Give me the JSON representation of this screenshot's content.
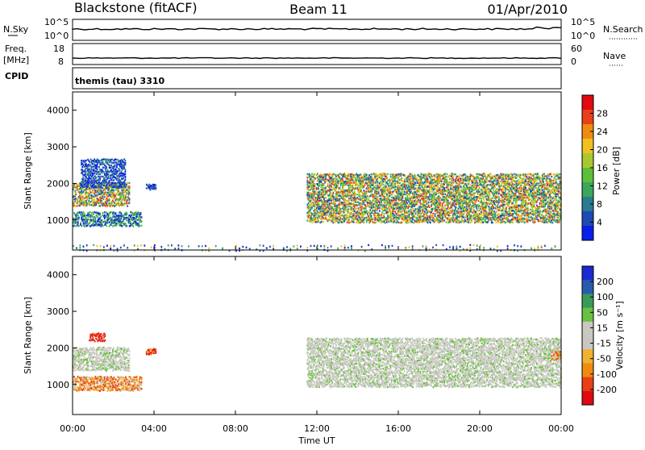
{
  "header": {
    "station": "Blackstone (fitACF)",
    "beam": "Beam 11",
    "date": "01/Apr/2010"
  },
  "strips": {
    "nsky_label": "N.Sky",
    "nsky_top": "10^5",
    "nsky_bot": "10^0",
    "nsearch_label": "N.Search",
    "nsearch_top": "10^5",
    "nsearch_bot": "10^0",
    "freq_label": "Freq.",
    "freq_unit": "[MHz]",
    "freq_top": "18",
    "freq_bot": "8",
    "nave_label": "Nave",
    "nave_top": "60",
    "nave_bot": "0",
    "cpid_label": "CPID",
    "cpid_value": "themis (tau) 3310"
  },
  "chart_data": [
    {
      "type": "heatmap",
      "parameter": "Power",
      "ylabel": "Slant Range [km]",
      "xlabel": "",
      "x_range_hours": [
        0,
        24
      ],
      "ylim": [
        180,
        4500
      ],
      "y_ticks": [
        "4000",
        "3000",
        "2000",
        "1000"
      ],
      "y_tick_values": [
        4000,
        3000,
        2000,
        1000
      ],
      "colorbar": {
        "label": "Power [dB]",
        "ticks": [
          "28",
          "24",
          "20",
          "16",
          "12",
          "8",
          "4"
        ],
        "tick_values": [
          28,
          24,
          20,
          16,
          12,
          8,
          4
        ],
        "range": [
          0,
          32
        ],
        "colors": [
          "#0a1eea",
          "#1e4ab4",
          "#2a7a90",
          "#3aa85a",
          "#5bbf3a",
          "#a8c830",
          "#f0c020",
          "#f08a10",
          "#e84018",
          "#e00a10"
        ]
      },
      "echo_regions": [
        {
          "t_start": 0.0,
          "t_end": 3.4,
          "r_min": 850,
          "r_max": 1250,
          "level": "low-mid"
        },
        {
          "t_start": 0.0,
          "t_end": 2.8,
          "r_min": 1400,
          "r_max": 2050,
          "level": "mid-high"
        },
        {
          "t_start": 0.4,
          "t_end": 2.6,
          "r_min": 1900,
          "r_max": 2700,
          "level": "low"
        },
        {
          "t_start": 3.6,
          "t_end": 4.1,
          "r_min": 1850,
          "r_max": 2000,
          "level": "low"
        },
        {
          "t_start": 11.5,
          "t_end": 24.0,
          "r_min": 950,
          "r_max": 2300,
          "level": "mid-high"
        },
        {
          "t_start": 0.0,
          "t_end": 24.0,
          "r_min": 180,
          "r_max": 350,
          "level": "ground-scatter-sparse"
        }
      ]
    },
    {
      "type": "heatmap",
      "parameter": "Velocity",
      "ylabel": "Slant Range [km]",
      "xlabel": "Time UT",
      "x_range_hours": [
        0,
        24
      ],
      "x_ticks": [
        "00:00",
        "04:00",
        "08:00",
        "12:00",
        "16:00",
        "20:00",
        "00:00"
      ],
      "ylim": [
        180,
        4500
      ],
      "y_ticks": [
        "4000",
        "3000",
        "2000",
        "1000"
      ],
      "y_tick_values": [
        4000,
        3000,
        2000,
        1000
      ],
      "colorbar": {
        "label": "Velocity [m s⁻¹]",
        "ticks": [
          "200",
          "100",
          "50",
          "15",
          "-15",
          "-50",
          "-100",
          "-200"
        ],
        "tick_values": [
          200,
          100,
          50,
          15,
          -15,
          -50,
          -100,
          -200
        ],
        "colors": [
          "#e00a10",
          "#e84018",
          "#f08a10",
          "#f0b030",
          "#c8c8c0",
          "#c8c8c0",
          "#6ac040",
          "#3a9a5a",
          "#2a5ab0",
          "#1a2ad0"
        ]
      },
      "echo_regions": [
        {
          "t_start": 0.0,
          "t_end": 3.4,
          "r_min": 850,
          "r_max": 1250,
          "level": "negative-50"
        },
        {
          "t_start": 0.0,
          "t_end": 2.8,
          "r_min": 1400,
          "r_max": 2050,
          "level": "near-zero"
        },
        {
          "t_start": 0.8,
          "t_end": 1.6,
          "r_min": 2200,
          "r_max": 2450,
          "level": "negative-200"
        },
        {
          "t_start": 3.6,
          "t_end": 4.1,
          "r_min": 1850,
          "r_max": 2000,
          "level": "negative-100"
        },
        {
          "t_start": 11.5,
          "t_end": 24.0,
          "r_min": 950,
          "r_max": 2300,
          "level": "near-zero"
        },
        {
          "t_start": 23.5,
          "t_end": 24.0,
          "r_min": 1700,
          "r_max": 1950,
          "level": "negative-50"
        }
      ]
    }
  ]
}
